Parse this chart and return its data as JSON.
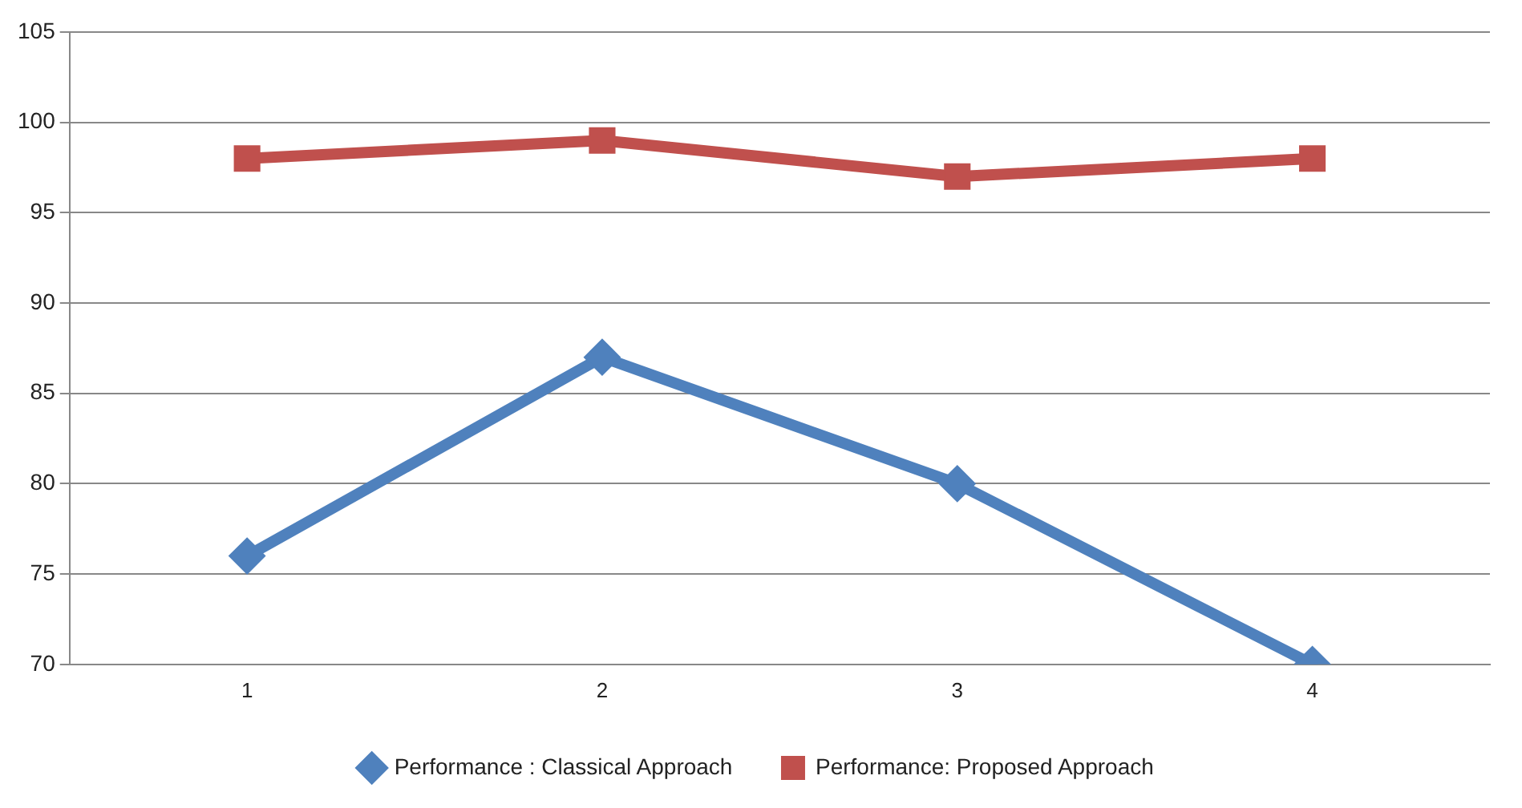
{
  "chart_data": {
    "type": "line",
    "categories": [
      "1",
      "2",
      "3",
      "4"
    ],
    "series": [
      {
        "name": "Performance : Classical Approach",
        "color": "#4f81bd",
        "values": [
          76,
          87,
          80,
          70
        ],
        "marker": "diamond"
      },
      {
        "name": "Performance: Proposed Approach",
        "color": "#c0504d",
        "values": [
          98,
          99,
          97,
          98
        ],
        "marker": "square"
      }
    ],
    "ylim": [
      70,
      105
    ],
    "yticks": [
      70,
      75,
      80,
      85,
      90,
      95,
      100,
      105
    ],
    "grid": "y",
    "legend": "bottom",
    "line_style": "solid"
  }
}
